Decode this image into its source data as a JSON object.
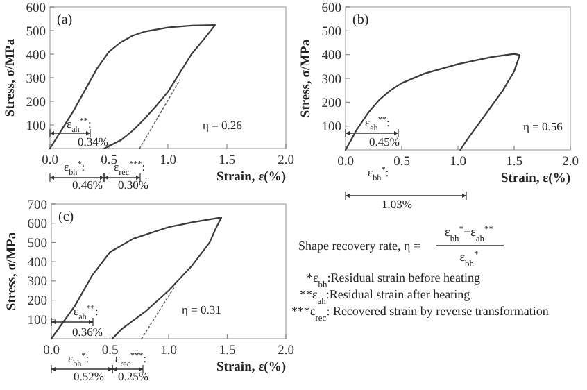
{
  "chart_data": [
    {
      "type": "line",
      "title": "(a)",
      "xlabel": "Strain, ε(%)",
      "ylabel": "Stress, σ/MPa",
      "xlim": [
        0,
        2
      ],
      "ylim": [
        0,
        600
      ],
      "xticks": [
        {
          "value": 0,
          "label": "0.0"
        },
        {
          "value": 0.5,
          "label": "0.5"
        },
        {
          "value": 1,
          "label": "1.0"
        },
        {
          "value": 1.5,
          "label": "1.5"
        },
        {
          "value": 2,
          "label": "2.0"
        }
      ],
      "yticks": [
        100,
        200,
        300,
        400,
        500,
        600
      ],
      "series": [
        {
          "color": "#3a3a3a",
          "x": [
            0,
            0.2,
            0.4,
            0.5,
            0.6,
            0.7,
            0.8,
            1.0,
            1.2,
            1.4,
            1.3,
            1.2,
            1.1,
            1.0,
            0.9,
            0.8,
            0.7,
            0.6,
            0.46
          ],
          "values": [
            0,
            160,
            340,
            410,
            450,
            478,
            495,
            513,
            521,
            523,
            460,
            400,
            320,
            240,
            180,
            125,
            75,
            35,
            0
          ]
        },
        {
          "color": "#5a5a5a",
          "line_style": "dotted",
          "x": [
            0.76,
            1.1
          ],
          "values": [
            0,
            290
          ]
        }
      ],
      "annotations": [
        "ε$_{ah}$$^{**}$:",
        "0.34%",
        "ε$_{bh}$$^{*}$:",
        "0.46%",
        "ε$_{rec}$$^{***}$:",
        "0.30%",
        "η = 0.26"
      ]
    },
    {
      "type": "line",
      "title": "(b)",
      "xlabel": "Strain, ε(%)",
      "ylabel": "Stress, σ/MPa",
      "xlim": [
        0,
        2
      ],
      "ylim": [
        0,
        600
      ],
      "xticks": [
        {
          "value": 0,
          "label": "0.0"
        },
        {
          "value": 0.5,
          "label": "0.5"
        },
        {
          "value": 1,
          "label": "1.0"
        },
        {
          "value": 1.5,
          "label": "1.5"
        },
        {
          "value": 2,
          "label": "2.0"
        }
      ],
      "yticks": [
        100,
        200,
        300,
        400,
        500,
        600
      ],
      "series": [
        {
          "color": "#3a3a3a",
          "x": [
            0,
            0.1,
            0.2,
            0.3,
            0.4,
            0.5,
            0.7,
            1.0,
            1.3,
            1.5,
            1.55,
            1.5,
            1.4,
            1.3,
            1.2,
            1.1,
            1.02
          ],
          "values": [
            0,
            85,
            155,
            210,
            250,
            280,
            320,
            360,
            390,
            403,
            398,
            330,
            250,
            185,
            120,
            55,
            0
          ]
        }
      ],
      "annotations": [
        "ε$_{ah}$$^{**}$:",
        "0.45%",
        "η = 0.56",
        "ε$_{bh}$$^{*}$:",
        "1.03%"
      ]
    },
    {
      "type": "line",
      "title": "(c)",
      "xlabel": "Strain, ε(%)",
      "ylabel": "Stress, σ/MPa",
      "xlim": [
        0,
        2
      ],
      "ylim": [
        0,
        700
      ],
      "xticks": [
        {
          "value": 0,
          "label": "0.0"
        },
        {
          "value": 0.5,
          "label": "0.5"
        },
        {
          "value": 1,
          "label": "1.0"
        },
        {
          "value": 1.5,
          "label": "1.5"
        },
        {
          "value": 2,
          "label": "2.0"
        }
      ],
      "yticks": [
        100,
        200,
        300,
        400,
        500,
        600,
        700
      ],
      "series": [
        {
          "color": "#3a3a3a",
          "x": [
            0,
            0.2,
            0.35,
            0.5,
            0.7,
            1.0,
            1.2,
            1.45,
            1.4,
            1.35,
            1.2,
            1.0,
            0.8,
            0.6,
            0.52
          ],
          "values": [
            0,
            170,
            330,
            450,
            520,
            580,
            605,
            630,
            570,
            500,
            380,
            250,
            140,
            50,
            0
          ]
        },
        {
          "color": "#5a5a5a",
          "line_style": "dotted",
          "x": [
            0.77,
            1.05
          ],
          "values": [
            0,
            270
          ]
        }
      ],
      "annotations": [
        "ε$_{ah}$$^{**}$:",
        "0.36%",
        "η = 0.31",
        "ε$_{bh}$$^{*}$:",
        "0.52%",
        "ε$_{rec}$$^{***}$:",
        "0.25%"
      ]
    },
    {
      "type": "other",
      "annotations": [
        "Shape recovery rate, η =",
        "ε$_{bh}$$^{*}$−ε$_{ah}$$^{**}$",
        "ε$_{bh}$$^{*}$",
        "*ε$_{bh}$:Residual strain before heating",
        "**ε$_{ah}$:Residual strain after heating",
        "***ε$_{rec}$: Recovered strain by reverse transformation"
      ]
    }
  ]
}
